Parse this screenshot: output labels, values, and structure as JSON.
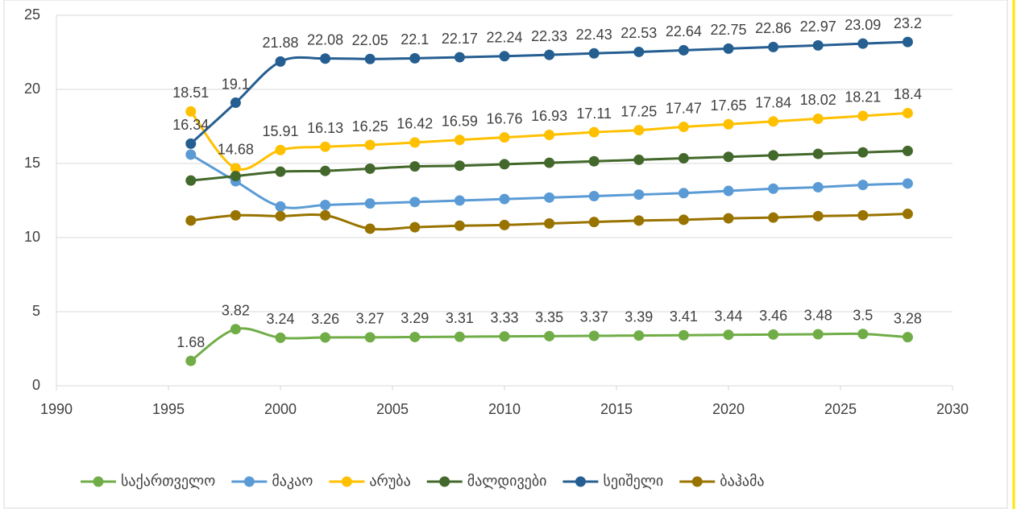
{
  "chart_data": {
    "type": "line",
    "x": [
      1996,
      1998,
      2000,
      2002,
      2004,
      2006,
      2008,
      2010,
      2012,
      2014,
      2016,
      2018,
      2020,
      2022,
      2024,
      2026,
      2028
    ],
    "xlim": [
      1990,
      2030
    ],
    "xticks": [
      1990,
      1995,
      2000,
      2005,
      2010,
      2015,
      2020,
      2025,
      2030
    ],
    "ylim": [
      0,
      25
    ],
    "yticks": [
      0,
      5,
      10,
      15,
      20,
      25
    ],
    "grid": true,
    "legend": "bottom",
    "series": [
      {
        "name": "საქართველო",
        "color": "#70ad47",
        "data_labels": true,
        "values": [
          1.68,
          3.82,
          3.24,
          3.26,
          3.27,
          3.29,
          3.31,
          3.33,
          3.35,
          3.37,
          3.39,
          3.41,
          3.44,
          3.46,
          3.48,
          3.5,
          3.28
        ]
      },
      {
        "name": "მაკაო",
        "color": "#5b9bd5",
        "data_labels": false,
        "values": [
          15.6,
          13.8,
          12.1,
          12.2,
          12.3,
          12.4,
          12.5,
          12.6,
          12.7,
          12.8,
          12.9,
          13.0,
          13.15,
          13.3,
          13.4,
          13.55,
          13.65
        ]
      },
      {
        "name": "არუბა",
        "color": "#ffc000",
        "data_labels": true,
        "values": [
          18.51,
          14.68,
          15.91,
          16.13,
          16.25,
          16.42,
          16.59,
          16.76,
          16.93,
          17.11,
          17.25,
          17.47,
          17.65,
          17.84,
          18.02,
          18.21,
          18.4
        ]
      },
      {
        "name": "მალდივები",
        "color": "#43682b",
        "data_labels": false,
        "values": [
          13.85,
          14.15,
          14.45,
          14.5,
          14.65,
          14.8,
          14.85,
          14.95,
          15.05,
          15.15,
          15.25,
          15.35,
          15.45,
          15.55,
          15.65,
          15.75,
          15.85
        ]
      },
      {
        "name": "სეიშელი",
        "color": "#255e91",
        "data_labels": true,
        "values": [
          16.34,
          19.1,
          21.88,
          22.08,
          22.05,
          22.1,
          22.17,
          22.24,
          22.33,
          22.43,
          22.53,
          22.64,
          22.75,
          22.86,
          22.97,
          23.09,
          23.2
        ]
      },
      {
        "name": "ბაჰამა",
        "color": "#997300",
        "data_labels": false,
        "values": [
          11.15,
          11.5,
          11.45,
          11.5,
          10.6,
          10.7,
          10.8,
          10.85,
          10.95,
          11.05,
          11.15,
          11.2,
          11.3,
          11.35,
          11.45,
          11.5,
          11.6
        ]
      }
    ]
  }
}
